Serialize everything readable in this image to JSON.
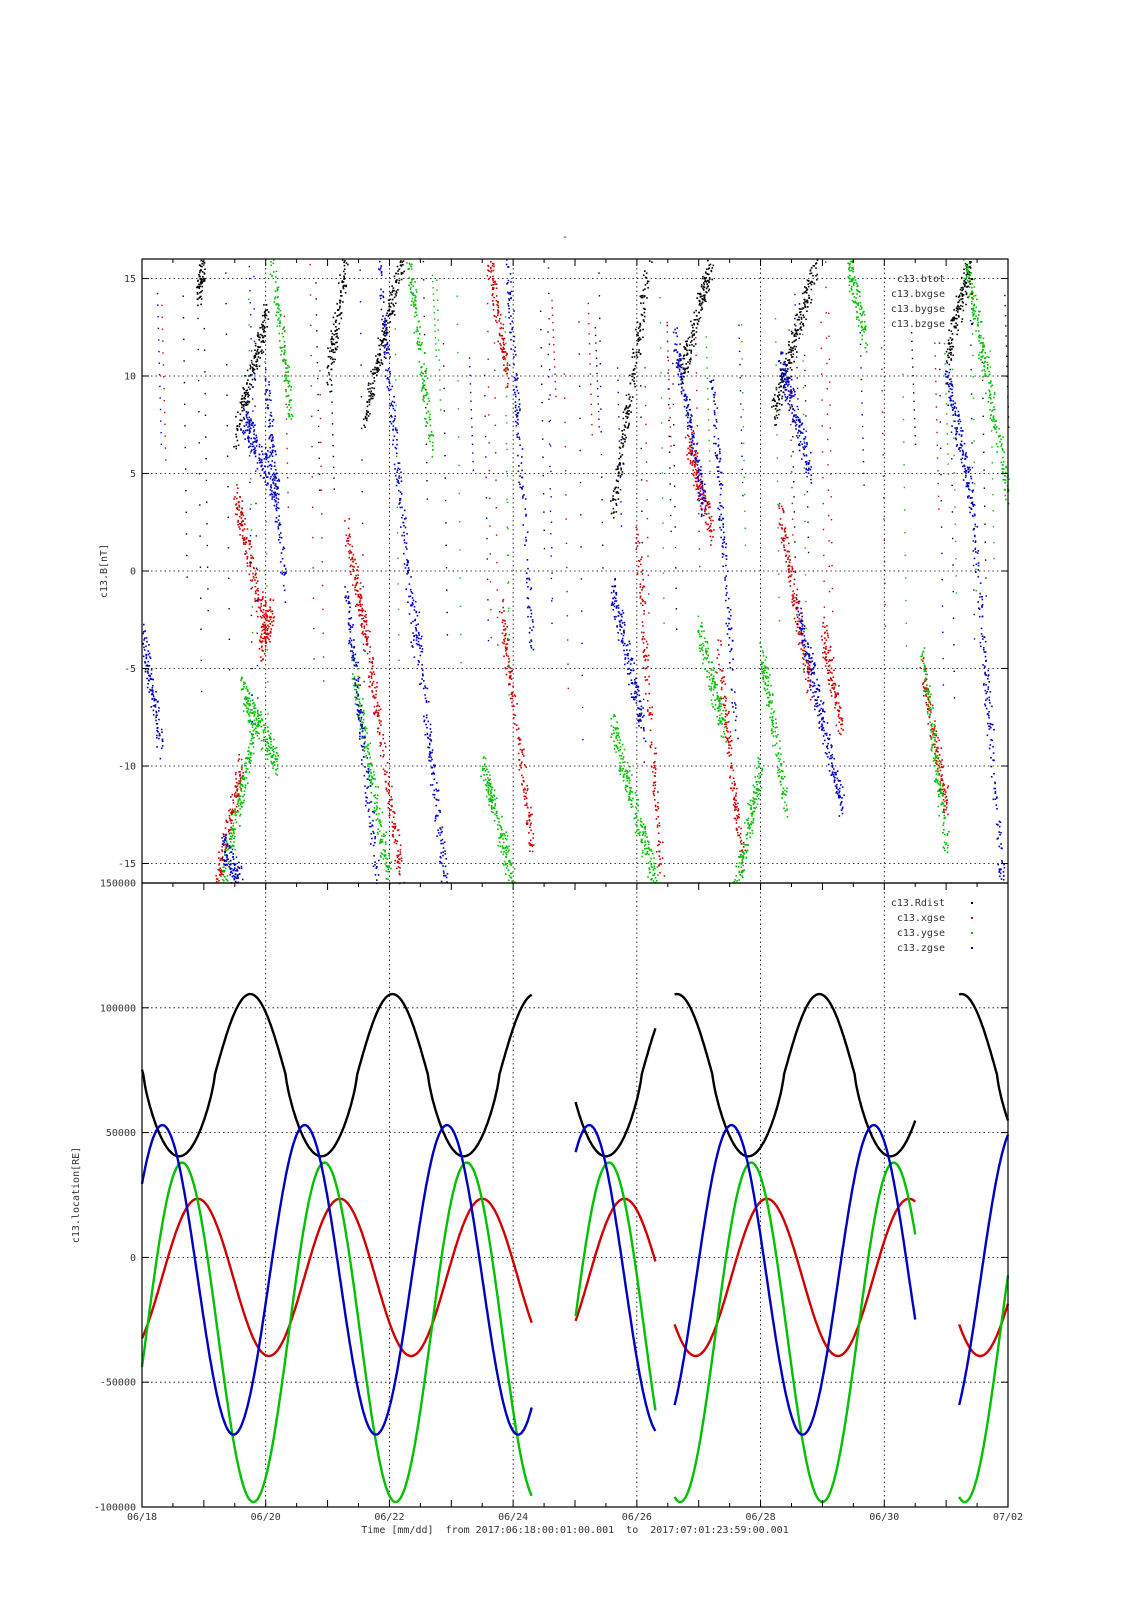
{
  "figure": {
    "top_mark": "-",
    "time_caption": "Time [mm/dd]  from 2017:06:18:00:01:00.001  to  2017:07:01:23:59:00.001"
  },
  "chart_data": [
    {
      "type": "scatter",
      "ylabel": "c13.B[nT]",
      "ylim": [
        -16,
        16
      ],
      "yticks": [
        -15,
        -10,
        -5,
        0,
        5,
        10,
        15
      ],
      "ytick_labels": [
        "-15",
        "-10",
        "-5",
        "0",
        "5",
        "10",
        "15"
      ],
      "xlim_days": [
        0,
        14
      ],
      "grid": true,
      "legend_position": "top-right",
      "series": [
        {
          "name": "c13.btot",
          "color": "#000000",
          "segments": [
            [
              0.9,
              1.0,
              14,
              16
            ],
            [
              1.5,
              2.0,
              7,
              13
            ],
            [
              3.0,
              3.3,
              10,
              16
            ],
            [
              3.6,
              4.2,
              8,
              16
            ],
            [
              7.6,
              8.2,
              3,
              16
            ],
            [
              8.7,
              9.2,
              10,
              16
            ],
            [
              10.2,
              10.9,
              8,
              16
            ],
            [
              13.0,
              13.4,
              11,
              16
            ]
          ]
        },
        {
          "name": "c13.bxgse",
          "color": "#d00000",
          "segments": [
            [
              1.2,
              1.6,
              -16,
              -10
            ],
            [
              1.5,
              2.0,
              4,
              -3
            ],
            [
              1.9,
              2.1,
              -4,
              -2
            ],
            [
              3.3,
              3.6,
              2,
              -3
            ],
            [
              3.6,
              4.2,
              -3,
              -16
            ],
            [
              5.6,
              5.9,
              16,
              10
            ],
            [
              5.8,
              6.3,
              -2,
              -14
            ],
            [
              8.0,
              8.4,
              2,
              -16
            ],
            [
              8.8,
              9.2,
              7,
              2
            ],
            [
              9.3,
              9.7,
              -4,
              -15
            ],
            [
              10.3,
              10.8,
              3,
              -6
            ],
            [
              11.0,
              11.3,
              -3,
              -8
            ],
            [
              12.6,
              13.0,
              -5,
              -12
            ]
          ]
        },
        {
          "name": "c13.bygse",
          "color": "#00c000",
          "segments": [
            [
              1.3,
              1.8,
              -16,
              -8
            ],
            [
              1.6,
              2.2,
              -6,
              -10
            ],
            [
              2.1,
              2.4,
              16,
              8
            ],
            [
              3.4,
              4.0,
              -5,
              -16
            ],
            [
              4.3,
              4.7,
              16,
              6
            ],
            [
              5.5,
              6.0,
              -10,
              -16
            ],
            [
              7.6,
              8.3,
              -8,
              -16
            ],
            [
              9.0,
              9.4,
              -3,
              -8
            ],
            [
              9.6,
              10.0,
              -16,
              -10
            ],
            [
              10.0,
              10.4,
              -4,
              -12
            ],
            [
              11.4,
              11.7,
              16,
              12
            ],
            [
              12.6,
              13.0,
              -4,
              -14
            ],
            [
              13.3,
              14.0,
              16,
              4
            ]
          ]
        },
        {
          "name": "c13.bzgse",
          "color": "#0000c0",
          "segments": [
            [
              0.0,
              0.3,
              -3,
              -9
            ],
            [
              1.3,
              1.6,
              -14,
              -16
            ],
            [
              1.6,
              2.2,
              8,
              4
            ],
            [
              2.0,
              2.3,
              10,
              -1
            ],
            [
              3.3,
              3.8,
              -1,
              -16
            ],
            [
              3.8,
              4.4,
              16,
              -4
            ],
            [
              4.4,
              4.9,
              -2,
              -16
            ],
            [
              5.9,
              6.3,
              16,
              -4
            ],
            [
              7.6,
              8.1,
              -1,
              -8
            ],
            [
              8.6,
              9.1,
              12,
              3
            ],
            [
              9.2,
              9.6,
              10,
              -8
            ],
            [
              10.3,
              10.8,
              11,
              5
            ],
            [
              10.6,
              11.3,
              -2,
              -12
            ],
            [
              13.0,
              13.4,
              10,
              4
            ],
            [
              13.4,
              13.9,
              4,
              -16
            ]
          ]
        }
      ]
    },
    {
      "type": "line",
      "xlabel": "Time [mm/dd]",
      "ylabel": "c13.location[RE]",
      "ylim": [
        -100000,
        150000
      ],
      "yticks": [
        -100000,
        -50000,
        0,
        50000,
        100000,
        150000
      ],
      "ytick_labels": [
        "-100000",
        "-50000",
        "0",
        "50000",
        "100000",
        "150000"
      ],
      "xlim_days": [
        0,
        14
      ],
      "xticks_days": [
        0,
        2,
        4,
        6,
        8,
        10,
        12,
        14
      ],
      "xtick_labels": [
        "06/18",
        "06/20",
        "06/22",
        "06/24",
        "06/26",
        "06/28",
        "06/30",
        "07/02"
      ],
      "grid": true,
      "legend_position": "top-right",
      "data_gaps_days": [
        [
          6.3,
          7.0
        ],
        [
          8.3,
          8.6
        ],
        [
          12.5,
          13.2
        ]
      ],
      "series": [
        {
          "name": "c13.Rdist",
          "color": "#000000",
          "mean": 73000,
          "amplitude": 32500,
          "period_days": 2.3,
          "peak_day": 1.75,
          "sharp_minimum": true
        },
        {
          "name": "c13.xgse",
          "color": "#d00000",
          "mean": -8000,
          "amplitude": 31500,
          "period_days": 2.3,
          "peak_day": 0.9
        },
        {
          "name": "c13.ygse",
          "color": "#00c000",
          "mean": -30000,
          "amplitude": 68000,
          "period_days": 2.3,
          "peak_day": 0.65
        },
        {
          "name": "c13.zgse",
          "color": "#0000c0",
          "mean": -9000,
          "amplitude": 62000,
          "period_days": 2.3,
          "peak_day": 0.33
        }
      ]
    }
  ]
}
